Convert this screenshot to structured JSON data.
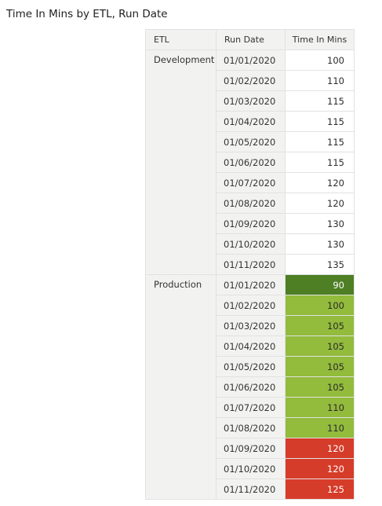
{
  "title": "Time In Mins by ETL, Run Date",
  "columns": [
    "ETL",
    "Run Date",
    "Time In Mins"
  ],
  "groups": [
    {
      "etl": "Development",
      "rows": [
        {
          "date": "01/01/2020",
          "value": "100",
          "bg": "#ffffff",
          "fg": "#2b2b2b"
        },
        {
          "date": "01/02/2020",
          "value": "110",
          "bg": "#ffffff",
          "fg": "#2b2b2b"
        },
        {
          "date": "01/03/2020",
          "value": "115",
          "bg": "#ffffff",
          "fg": "#2b2b2b"
        },
        {
          "date": "01/04/2020",
          "value": "115",
          "bg": "#ffffff",
          "fg": "#2b2b2b"
        },
        {
          "date": "01/05/2020",
          "value": "115",
          "bg": "#ffffff",
          "fg": "#2b2b2b"
        },
        {
          "date": "01/06/2020",
          "value": "115",
          "bg": "#ffffff",
          "fg": "#2b2b2b"
        },
        {
          "date": "01/07/2020",
          "value": "120",
          "bg": "#ffffff",
          "fg": "#2b2b2b"
        },
        {
          "date": "01/08/2020",
          "value": "120",
          "bg": "#ffffff",
          "fg": "#2b2b2b"
        },
        {
          "date": "01/09/2020",
          "value": "130",
          "bg": "#ffffff",
          "fg": "#2b2b2b"
        },
        {
          "date": "01/10/2020",
          "value": "130",
          "bg": "#ffffff",
          "fg": "#2b2b2b"
        },
        {
          "date": "01/11/2020",
          "value": "135",
          "bg": "#ffffff",
          "fg": "#2b2b2b"
        }
      ]
    },
    {
      "etl": "Production",
      "rows": [
        {
          "date": "01/01/2020",
          "value": "90",
          "bg": "#4e7f24",
          "fg": "#ffffff"
        },
        {
          "date": "01/02/2020",
          "value": "100",
          "bg": "#93bb3c",
          "fg": "#2b2b2b"
        },
        {
          "date": "01/03/2020",
          "value": "105",
          "bg": "#93bb3c",
          "fg": "#2b2b2b"
        },
        {
          "date": "01/04/2020",
          "value": "105",
          "bg": "#93bb3c",
          "fg": "#2b2b2b"
        },
        {
          "date": "01/05/2020",
          "value": "105",
          "bg": "#93bb3c",
          "fg": "#2b2b2b"
        },
        {
          "date": "01/06/2020",
          "value": "105",
          "bg": "#93bb3c",
          "fg": "#2b2b2b"
        },
        {
          "date": "01/07/2020",
          "value": "110",
          "bg": "#93bb3c",
          "fg": "#2b2b2b"
        },
        {
          "date": "01/08/2020",
          "value": "110",
          "bg": "#93bb3c",
          "fg": "#2b2b2b"
        },
        {
          "date": "01/09/2020",
          "value": "120",
          "bg": "#d63c2a",
          "fg": "#ffffff"
        },
        {
          "date": "01/10/2020",
          "value": "120",
          "bg": "#d63c2a",
          "fg": "#ffffff"
        },
        {
          "date": "01/11/2020",
          "value": "125",
          "bg": "#d63c2a",
          "fg": "#ffffff"
        }
      ]
    }
  ]
}
